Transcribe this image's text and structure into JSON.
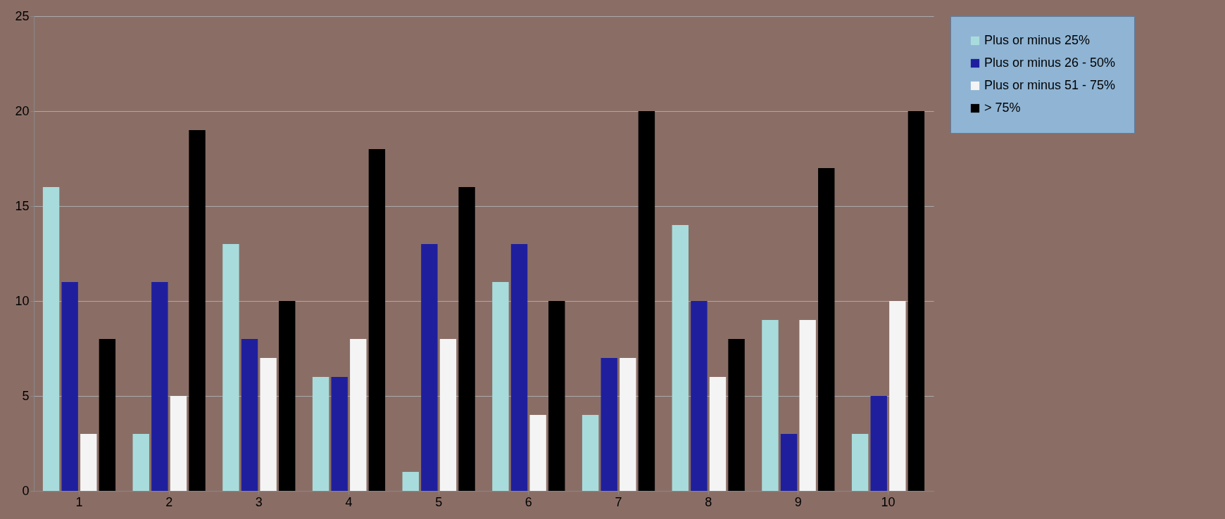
{
  "chart_data": {
    "type": "bar",
    "categories": [
      "1",
      "2",
      "3",
      "4",
      "5",
      "6",
      "7",
      "8",
      "9",
      "10"
    ],
    "series": [
      {
        "name": "Plus or minus 25%",
        "color": "#a8dcdc",
        "values": [
          16,
          3,
          13,
          6,
          1,
          11,
          4,
          14,
          9,
          3
        ]
      },
      {
        "name": "Plus or minus 26 - 50%",
        "color": "#1f1f9e",
        "values": [
          11,
          11,
          8,
          6,
          13,
          13,
          7,
          10,
          3,
          5
        ]
      },
      {
        "name": "Plus or minus 51 - 75%",
        "color": "#f4f4f4",
        "values": [
          3,
          5,
          7,
          8,
          8,
          4,
          7,
          6,
          9,
          10
        ]
      },
      {
        "name": "> 75%",
        "color": "#000000",
        "values": [
          8,
          19,
          10,
          18,
          16,
          10,
          20,
          8,
          17,
          20
        ]
      }
    ],
    "ylim": [
      0,
      25
    ],
    "yticks": [
      0,
      5,
      10,
      15,
      20,
      25
    ],
    "grid": "y",
    "legend": "right"
  }
}
